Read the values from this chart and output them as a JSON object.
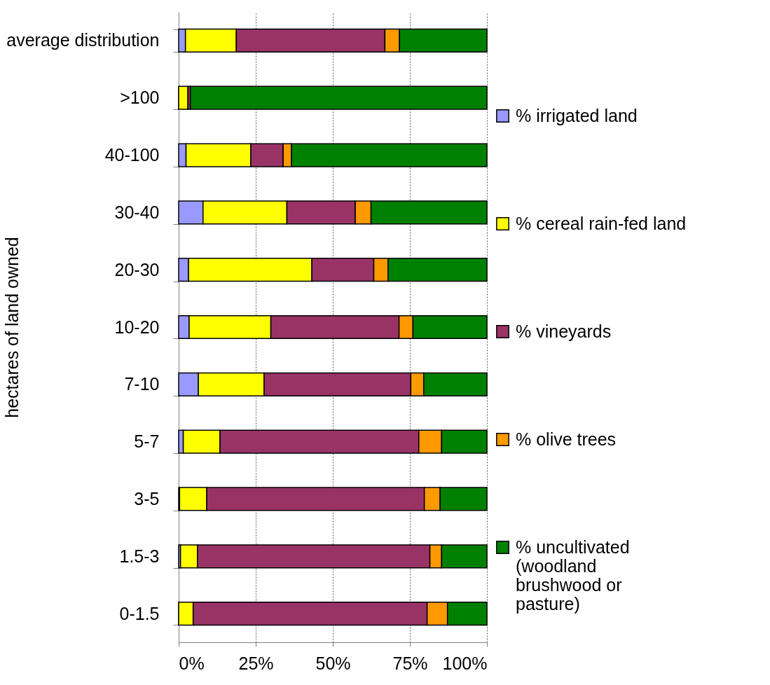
{
  "chart_data": {
    "type": "bar",
    "orientation": "horizontal",
    "stacked": true,
    "ylabel": "hectares of land owned",
    "categories": [
      "average distribution",
      ">100",
      "40-100",
      "30-40",
      "20-30",
      "10-20",
      "7-10",
      "5-7",
      "3-5",
      "1.5-3",
      "0-1.5"
    ],
    "series": [
      {
        "name": "% irrigated land",
        "color": "#9999ff",
        "values": [
          2.2,
          0,
          2.4,
          7.9,
          3.2,
          3.4,
          6.4,
          1.5,
          0.3,
          0.6,
          0
        ]
      },
      {
        "name": "% cereal rain-fed land",
        "color": "#ffff00",
        "values": [
          16.5,
          3.0,
          21.0,
          27.2,
          40.0,
          26.5,
          21.3,
          11.9,
          8.8,
          5.5,
          4.7
        ]
      },
      {
        "name": "% vineyards",
        "color": "#993366",
        "values": [
          48.2,
          0.8,
          10.5,
          22.2,
          20.1,
          41.6,
          47.6,
          64.5,
          70.6,
          75.4,
          75.9
        ]
      },
      {
        "name": "% olive trees",
        "color": "#ff9900",
        "values": [
          4.7,
          0,
          2.7,
          5.1,
          4.6,
          4.5,
          4.2,
          7.4,
          5.1,
          3.8,
          6.6
        ]
      },
      {
        "name": "% uncultivated (woodland brushwood or pasture)",
        "color": "#008000",
        "values": [
          28.4,
          96.2,
          63.4,
          37.6,
          32.1,
          24.0,
          20.5,
          14.7,
          15.2,
          14.7,
          12.8
        ]
      }
    ],
    "xlim": [
      0,
      100
    ],
    "xticks": [
      {
        "value": 0,
        "label": "0%"
      },
      {
        "value": 25,
        "label": "25%"
      },
      {
        "value": 50,
        "label": "50%"
      },
      {
        "value": 75,
        "label": "75%"
      },
      {
        "value": 100,
        "label": "100%"
      }
    ],
    "grid": "x",
    "legend": "right"
  }
}
